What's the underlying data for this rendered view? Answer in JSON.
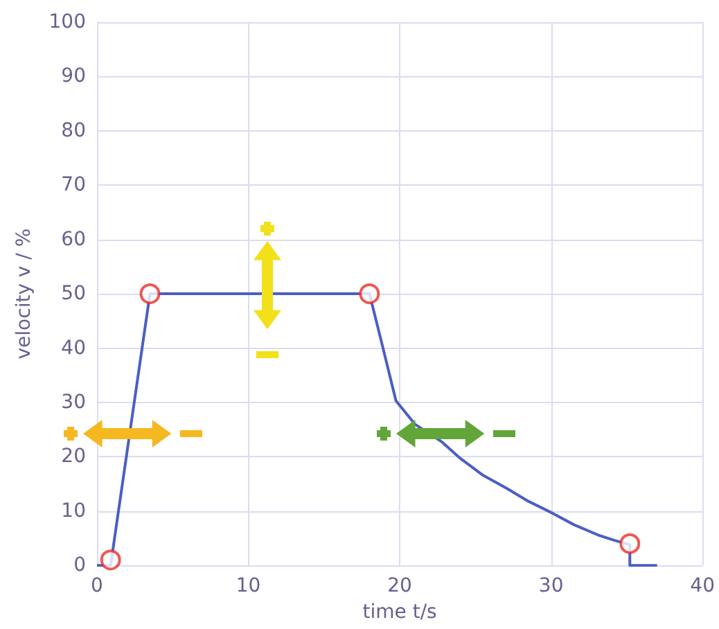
{
  "chart_data": {
    "type": "line",
    "xlabel": "time t/s",
    "ylabel": "velocity v / %",
    "xlim": [
      0,
      40
    ],
    "xticks": [
      0,
      10,
      20,
      30,
      40
    ],
    "ylim": [
      0,
      100
    ],
    "yticks": [
      0,
      10,
      20,
      30,
      40,
      50,
      60,
      70,
      80,
      90,
      100
    ],
    "grid": true,
    "series": [
      {
        "color": "#4a5fc1",
        "marker": "none",
        "x": [
          0,
          0.9,
          3.5,
          18,
          18.85,
          19.75,
          21,
          22.8,
          24,
          25.5,
          27.05,
          28.5,
          30.1,
          31.5,
          33.1,
          34.2,
          35.2,
          35.2,
          37
        ],
        "values": [
          0,
          0,
          50,
          50,
          40.5,
          30.3,
          26,
          22.7,
          19.7,
          16.6,
          14.2,
          11.8,
          9.6,
          7.5,
          5.6,
          4.6,
          3.8,
          0,
          0
        ]
      },
      {
        "type": "scatter",
        "color": "#e8302a",
        "marker": "circle",
        "x": [
          0.9,
          3.5,
          18,
          35.2
        ],
        "values": [
          1,
          50,
          50,
          4
        ]
      }
    ]
  }
}
